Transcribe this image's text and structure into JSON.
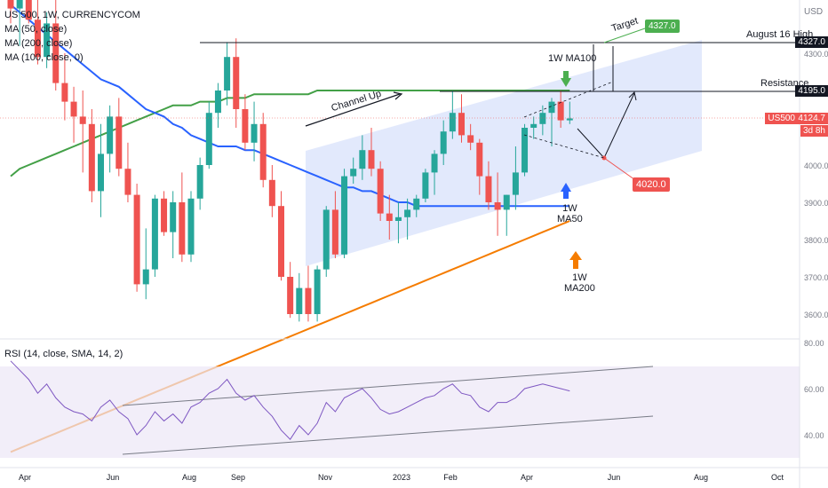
{
  "header": {
    "symbol": "US 500, 1W, CURRENCYCOM",
    "indicators": [
      "MA (50, close)",
      "MA (200, close)",
      "MA (100, close, 0)"
    ],
    "currency": "USD"
  },
  "rsi_panel": {
    "label": "RSI (14, close, SMA, 14, 2)"
  },
  "annotations": {
    "target": "Target",
    "target_value": "4327.0",
    "august_high": "August 16 High",
    "august_high_value": "4327.0",
    "resistance": "Resistance",
    "resistance_value": "4195.0",
    "channel": "Channel Up",
    "ma100": "1W MA100",
    "ma50": "1W\nMA50",
    "ma200": "1W\nMA200",
    "support_value": "4020.0",
    "last_label": "US500",
    "last_price": "4124.7",
    "countdown": "3d 8h"
  },
  "colors": {
    "up": "#26a69a",
    "down": "#ef5350",
    "ma50": "#2962ff",
    "ma200": "#f57c00",
    "ma100": "#43a047",
    "channel": "#dbe4fb",
    "rsi": "#7e57c2"
  },
  "chart_data": {
    "type": "candlestick",
    "price_axis_ticks": [
      4300,
      4100,
      4000,
      3900,
      3800,
      3700,
      3600
    ],
    "rsi_axis_ticks": [
      80,
      60,
      40
    ],
    "x_ticks": [
      "Apr",
      "Jun",
      "Aug",
      "Sep",
      "Nov",
      "2023",
      "Feb",
      "Apr",
      "Jun",
      "Aug",
      "Oct"
    ],
    "ohlc": [
      [
        4540,
        4590,
        4380,
        4420
      ],
      [
        4420,
        4500,
        4320,
        4470
      ],
      [
        4470,
        4480,
        4380,
        4390
      ],
      [
        4390,
        4460,
        4270,
        4290
      ],
      [
        4290,
        4410,
        4260,
        4380
      ],
      [
        4380,
        4470,
        4200,
        4220
      ],
      [
        4220,
        4300,
        4120,
        4170
      ],
      [
        4170,
        4210,
        4060,
        4130
      ],
      [
        4130,
        4200,
        3980,
        4110
      ],
      [
        4110,
        4150,
        3900,
        3930
      ],
      [
        3930,
        4110,
        3860,
        4030
      ],
      [
        4030,
        4160,
        3980,
        4130
      ],
      [
        4130,
        4180,
        3970,
        3990
      ],
      [
        3990,
        4060,
        3900,
        3920
      ],
      [
        3920,
        3950,
        3660,
        3680
      ],
      [
        3680,
        3830,
        3640,
        3720
      ],
      [
        3720,
        3920,
        3700,
        3910
      ],
      [
        3910,
        3930,
        3810,
        3820
      ],
      [
        3820,
        3930,
        3750,
        3900
      ],
      [
        3900,
        3980,
        3740,
        3760
      ],
      [
        3760,
        3930,
        3740,
        3910
      ],
      [
        3910,
        4020,
        3880,
        4000
      ],
      [
        4000,
        4170,
        3990,
        4140
      ],
      [
        4140,
        4220,
        4100,
        4200
      ],
      [
        4200,
        4330,
        4160,
        4290
      ],
      [
        4290,
        4340,
        4100,
        4150
      ],
      [
        4150,
        4190,
        4040,
        4060
      ],
      [
        4060,
        4170,
        4010,
        4110
      ],
      [
        4110,
        4140,
        3940,
        3960
      ],
      [
        3960,
        4000,
        3860,
        3890
      ],
      [
        3890,
        3930,
        3690,
        3700
      ],
      [
        3700,
        3740,
        3590,
        3600
      ],
      [
        3600,
        3710,
        3580,
        3670
      ],
      [
        3670,
        3730,
        3580,
        3600
      ],
      [
        3600,
        3730,
        3580,
        3720
      ],
      [
        3720,
        3890,
        3700,
        3880
      ],
      [
        3880,
        3930,
        3750,
        3760
      ],
      [
        3760,
        3990,
        3750,
        3970
      ],
      [
        3970,
        4020,
        3950,
        3990
      ],
      [
        3990,
        4080,
        3960,
        4040
      ],
      [
        4040,
        4100,
        3970,
        3990
      ],
      [
        3990,
        4010,
        3850,
        3870
      ],
      [
        3870,
        3920,
        3800,
        3850
      ],
      [
        3850,
        3900,
        3790,
        3860
      ],
      [
        3860,
        3910,
        3800,
        3880
      ],
      [
        3880,
        3920,
        3860,
        3910
      ],
      [
        3910,
        3990,
        3900,
        3980
      ],
      [
        3980,
        4040,
        3920,
        4030
      ],
      [
        4030,
        4120,
        4000,
        4090
      ],
      [
        4090,
        4200,
        4070,
        4140
      ],
      [
        4140,
        4190,
        4060,
        4080
      ],
      [
        4080,
        4110,
        4040,
        4060
      ],
      [
        4060,
        4070,
        3920,
        3970
      ],
      [
        3970,
        4010,
        3880,
        3900
      ],
      [
        3900,
        3980,
        3810,
        3880
      ],
      [
        3880,
        3920,
        3810,
        3920
      ],
      [
        3920,
        4050,
        3880,
        3980
      ],
      [
        3980,
        4110,
        3970,
        4100
      ],
      [
        4100,
        4130,
        4070,
        4110
      ],
      [
        4110,
        4160,
        4080,
        4140
      ],
      [
        4140,
        4180,
        4050,
        4170
      ],
      [
        4170,
        4200,
        4100,
        4120
      ],
      [
        4120,
        4170,
        4110,
        4125
      ]
    ],
    "ma50": [
      4430,
      4410,
      4390,
      4370,
      4350,
      4330,
      4310,
      4290,
      4270,
      4250,
      4230,
      4220,
      4210,
      4190,
      4170,
      4150,
      4140,
      4130,
      4110,
      4100,
      4080,
      4070,
      4060,
      4050,
      4050,
      4050,
      4040,
      4040,
      4030,
      4020,
      4010,
      4000,
      3990,
      3980,
      3970,
      3960,
      3950,
      3940,
      3940,
      3930,
      3930,
      3920,
      3910,
      3900,
      3900,
      3890,
      3890,
      3890,
      3890,
      3890,
      3890,
      3890,
      3890,
      3890,
      3890,
      3890,
      3890,
      3890,
      3890,
      3890,
      3890,
      3890,
      3890
    ],
    "ma200": [
      3230,
      3240,
      3250,
      3260,
      3270,
      3280,
      3290,
      3300,
      3310,
      3320,
      3330,
      3340,
      3350,
      3360,
      3370,
      3380,
      3390,
      3400,
      3410,
      3420,
      3430,
      3440,
      3450,
      3460,
      3470,
      3480,
      3490,
      3500,
      3510,
      3520,
      3530,
      3540,
      3550,
      3560,
      3570,
      3580,
      3590,
      3600,
      3610,
      3620,
      3630,
      3640,
      3650,
      3660,
      3670,
      3680,
      3690,
      3700,
      3710,
      3720,
      3730,
      3740,
      3750,
      3760,
      3770,
      3780,
      3790,
      3800,
      3810,
      3820,
      3830,
      3840,
      3850
    ],
    "ma100": [
      3970,
      3990,
      4000,
      4010,
      4020,
      4030,
      4040,
      4050,
      4060,
      4070,
      4080,
      4090,
      4100,
      4110,
      4120,
      4130,
      4140,
      4150,
      4160,
      4160,
      4160,
      4170,
      4170,
      4170,
      4180,
      4180,
      4180,
      4190,
      4190,
      4190,
      4190,
      4190,
      4190,
      4190,
      4200,
      4200,
      4200,
      4200,
      4200,
      4200,
      4200,
      4200,
      4200,
      4200,
      4200,
      4200,
      4200,
      4200,
      4200,
      4200,
      4200,
      4200,
      4200,
      4200,
      4200,
      4200,
      4200,
      4200,
      4200,
      4200,
      4200,
      4200,
      4200
    ],
    "rsi": [
      72,
      68,
      64,
      58,
      62,
      56,
      52,
      50,
      49,
      46,
      52,
      55,
      50,
      47,
      40,
      44,
      50,
      46,
      49,
      45,
      52,
      54,
      58,
      60,
      64,
      58,
      55,
      57,
      52,
      48,
      42,
      38,
      44,
      40,
      45,
      54,
      50,
      56,
      58,
      60,
      56,
      51,
      49,
      50,
      52,
      54,
      56,
      57,
      60,
      62,
      58,
      57,
      52,
      50,
      54,
      54,
      56,
      60,
      61,
      62,
      61,
      60,
      59
    ]
  }
}
